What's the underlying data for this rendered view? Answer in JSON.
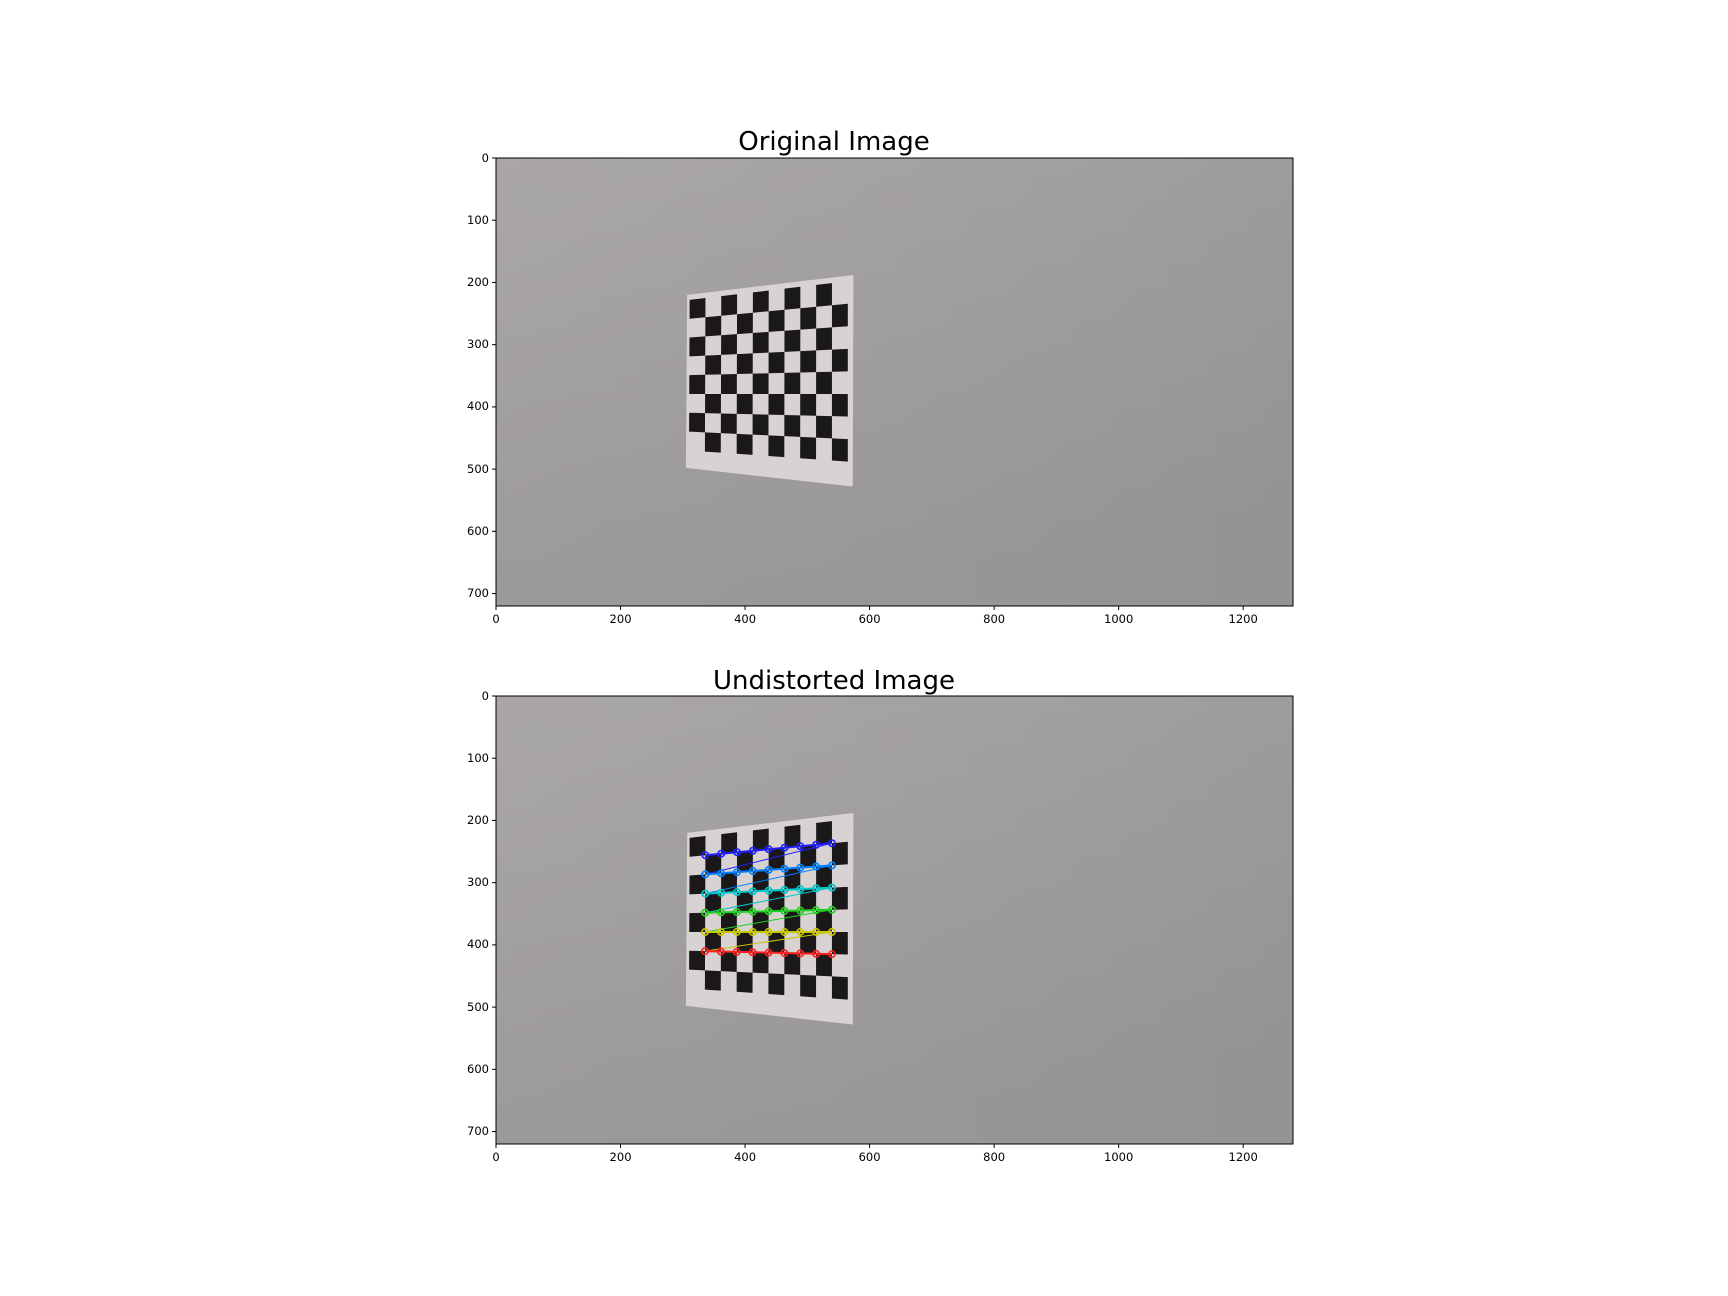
{
  "panels": [
    {
      "title": "Original Image",
      "x_ticks": [
        "0",
        "200",
        "400",
        "600",
        "800",
        "1000",
        "1200"
      ],
      "y_ticks": [
        "0",
        "100",
        "200",
        "300",
        "400",
        "500",
        "600",
        "700"
      ],
      "x_range": [
        0,
        1280
      ],
      "y_range": [
        720,
        0
      ],
      "show_corners": false
    },
    {
      "title": "Undistorted Image",
      "x_ticks": [
        "0",
        "200",
        "400",
        "600",
        "800",
        "1000",
        "1200"
      ],
      "y_ticks": [
        "0",
        "100",
        "200",
        "300",
        "400",
        "500",
        "600",
        "700"
      ],
      "x_range": [
        0,
        1280
      ],
      "y_range": [
        720,
        0
      ],
      "show_corners": true
    }
  ],
  "colors": {
    "wall_top": "#a8a5a6",
    "wall_bottom": "#8e8d8d",
    "paper": "#d9d2d2",
    "square": "#1a1818",
    "corner_rows": [
      "#2020ff",
      "#0080ff",
      "#00c8c8",
      "#20d020",
      "#c8c800",
      "#ff2020"
    ]
  }
}
